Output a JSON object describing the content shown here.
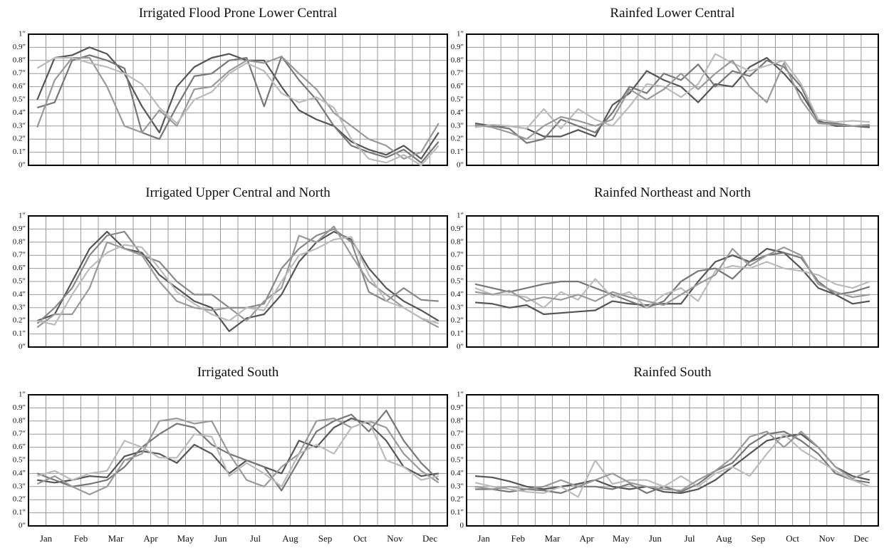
{
  "chart_data": [
    {
      "type": "line",
      "title": "Irrigated Flood Prone Lower Central",
      "ylim": [
        0,
        1
      ],
      "grid": true,
      "yticks": [
        {
          "value": 0,
          "label": "0\""
        },
        {
          "value": 0.1,
          "label": "0.1\""
        },
        {
          "value": 0.2,
          "label": "0.2\""
        },
        {
          "value": 0.3,
          "label": "0.3\""
        },
        {
          "value": 0.4,
          "label": "0.4\""
        },
        {
          "value": 0.5,
          "label": "0.5\""
        },
        {
          "value": 0.6,
          "label": "0.6\""
        },
        {
          "value": 0.7,
          "label": "0.7\""
        },
        {
          "value": 0.8,
          "label": "0.8\""
        },
        {
          "value": 0.9,
          "label": "0.9\""
        },
        {
          "value": 1,
          "label": "1\""
        }
      ],
      "series": [
        {
          "color": "#555555",
          "values": [
            0.5,
            0.82,
            0.84,
            0.9,
            0.85,
            0.7,
            0.45,
            0.25,
            0.6,
            0.75,
            0.82,
            0.85,
            0.8,
            0.8,
            0.6,
            0.42,
            0.35,
            0.3,
            0.18,
            0.12,
            0.08,
            0.15,
            0.05,
            0.25
          ]
        },
        {
          "color": "#777777",
          "values": [
            0.44,
            0.48,
            0.8,
            0.84,
            0.8,
            0.74,
            0.25,
            0.2,
            0.45,
            0.68,
            0.7,
            0.8,
            0.82,
            0.45,
            0.83,
            0.65,
            0.5,
            0.3,
            0.15,
            0.1,
            0.06,
            0.12,
            0.02,
            0.18
          ]
        },
        {
          "color": "#999999",
          "values": [
            0.29,
            0.65,
            0.82,
            0.82,
            0.6,
            0.3,
            0.25,
            0.42,
            0.3,
            0.58,
            0.6,
            0.72,
            0.8,
            0.78,
            0.83,
            0.7,
            0.58,
            0.4,
            0.3,
            0.2,
            0.15,
            0.05,
            0.1,
            0.32
          ]
        },
        {
          "color": "#bbbbbb",
          "values": [
            0.74,
            0.82,
            0.82,
            0.78,
            0.75,
            0.7,
            0.62,
            0.44,
            0.32,
            0.5,
            0.56,
            0.7,
            0.78,
            0.72,
            0.55,
            0.48,
            0.52,
            0.44,
            0.2,
            0.05,
            0.02,
            0.08,
            0,
            0.15
          ]
        }
      ]
    },
    {
      "type": "line",
      "title": "Rainfed Lower Central",
      "ylim": [
        0,
        1
      ],
      "grid": true,
      "yticks": [
        {
          "value": 0,
          "label": "0\""
        },
        {
          "value": 0.1,
          "label": "0.1\""
        },
        {
          "value": 0.2,
          "label": "0.2\""
        },
        {
          "value": 0.3,
          "label": "0.3\""
        },
        {
          "value": 0.4,
          "label": "0.4\""
        },
        {
          "value": 0.5,
          "label": "0.5\""
        },
        {
          "value": 0.6,
          "label": "0.6\""
        },
        {
          "value": 0.7,
          "label": "0.7\""
        },
        {
          "value": 0.8,
          "label": "0.8\""
        },
        {
          "value": 0.9,
          "label": "0.9\""
        },
        {
          "value": 1,
          "label": "1\""
        }
      ],
      "series": [
        {
          "color": "#555555",
          "values": [
            0.32,
            0.3,
            0.3,
            0.28,
            0.22,
            0.22,
            0.27,
            0.22,
            0.46,
            0.55,
            0.72,
            0.65,
            0.6,
            0.48,
            0.62,
            0.6,
            0.75,
            0.82,
            0.7,
            0.55,
            0.34,
            0.3,
            0.3,
            0.29
          ]
        },
        {
          "color": "#777777",
          "values": [
            0.3,
            0.3,
            0.28,
            0.17,
            0.2,
            0.35,
            0.3,
            0.25,
            0.4,
            0.6,
            0.55,
            0.7,
            0.65,
            0.77,
            0.6,
            0.72,
            0.68,
            0.8,
            0.75,
            0.6,
            0.33,
            0.32,
            0.3,
            0.3
          ]
        },
        {
          "color": "#bbbbbb",
          "values": [
            0.29,
            0.31,
            0.3,
            0.28,
            0.43,
            0.28,
            0.43,
            0.35,
            0.3,
            0.45,
            0.62,
            0.6,
            0.52,
            0.62,
            0.85,
            0.78,
            0.72,
            0.76,
            0.8,
            0.62,
            0.35,
            0.33,
            0.34,
            0.33
          ]
        },
        {
          "color": "#999999",
          "values": [
            0.31,
            0.29,
            0.25,
            0.2,
            0.3,
            0.37,
            0.34,
            0.3,
            0.35,
            0.58,
            0.5,
            0.58,
            0.7,
            0.58,
            0.7,
            0.8,
            0.6,
            0.48,
            0.78,
            0.5,
            0.32,
            0.31,
            0.3,
            0.31
          ]
        }
      ]
    },
    {
      "type": "line",
      "title": "Irrigated Upper Central and North",
      "ylim": [
        0,
        1
      ],
      "grid": true,
      "yticks": [
        {
          "value": 0,
          "label": "0\""
        },
        {
          "value": 0.1,
          "label": "0.1\""
        },
        {
          "value": 0.2,
          "label": "0.2\""
        },
        {
          "value": 0.3,
          "label": "0.3\""
        },
        {
          "value": 0.4,
          "label": "0.4\""
        },
        {
          "value": 0.5,
          "label": "0.5\""
        },
        {
          "value": 0.6,
          "label": "0.6\""
        },
        {
          "value": 0.7,
          "label": "0.7\""
        },
        {
          "value": 0.8,
          "label": "0.8\""
        },
        {
          "value": 0.9,
          "label": "0.9\""
        },
        {
          "value": 1,
          "label": "1\""
        }
      ],
      "series": [
        {
          "color": "#555555",
          "values": [
            0.2,
            0.25,
            0.5,
            0.75,
            0.88,
            0.75,
            0.72,
            0.55,
            0.45,
            0.35,
            0.3,
            0.12,
            0.22,
            0.25,
            0.4,
            0.65,
            0.8,
            0.88,
            0.82,
            0.6,
            0.45,
            0.35,
            0.28,
            0.2
          ]
        },
        {
          "color": "#888888",
          "values": [
            0.18,
            0.3,
            0.45,
            0.7,
            0.85,
            0.88,
            0.7,
            0.65,
            0.5,
            0.4,
            0.4,
            0.3,
            0.3,
            0.33,
            0.6,
            0.75,
            0.85,
            0.9,
            0.8,
            0.42,
            0.35,
            0.45,
            0.36,
            0.35
          ]
        },
        {
          "color": "#999999",
          "values": [
            0.15,
            0.25,
            0.25,
            0.45,
            0.8,
            0.75,
            0.7,
            0.5,
            0.35,
            0.3,
            0.28,
            0.3,
            0.2,
            0.35,
            0.45,
            0.85,
            0.8,
            0.92,
            0.7,
            0.5,
            0.4,
            0.3,
            0.22,
            0.15
          ]
        },
        {
          "color": "#bbbbbb",
          "values": [
            0.2,
            0.17,
            0.4,
            0.6,
            0.72,
            0.78,
            0.76,
            0.6,
            0.42,
            0.33,
            0.25,
            0.2,
            0.3,
            0.28,
            0.5,
            0.7,
            0.75,
            0.82,
            0.84,
            0.55,
            0.35,
            0.3,
            0.22,
            0.18
          ]
        }
      ]
    },
    {
      "type": "line",
      "title": "Rainfed Northeast and North",
      "ylim": [
        0,
        1
      ],
      "grid": true,
      "yticks": [
        {
          "value": 0,
          "label": "0\""
        },
        {
          "value": 0.1,
          "label": "0.1\""
        },
        {
          "value": 0.2,
          "label": "0.2\""
        },
        {
          "value": 0.3,
          "label": "0.3\""
        },
        {
          "value": 0.4,
          "label": "0.4\""
        },
        {
          "value": 0.5,
          "label": "0.5\""
        },
        {
          "value": 0.6,
          "label": "0.6\""
        },
        {
          "value": 0.7,
          "label": "0.7\""
        },
        {
          "value": 0.8,
          "label": "0.8\""
        },
        {
          "value": 0.9,
          "label": "0.9\""
        },
        {
          "value": 1,
          "label": "1\""
        }
      ],
      "series": [
        {
          "color": "#555555",
          "values": [
            0.34,
            0.33,
            0.3,
            0.32,
            0.25,
            0.26,
            0.27,
            0.28,
            0.35,
            0.33,
            0.32,
            0.33,
            0.33,
            0.5,
            0.65,
            0.7,
            0.65,
            0.75,
            0.72,
            0.6,
            0.45,
            0.4,
            0.33,
            0.35
          ]
        },
        {
          "color": "#777777",
          "values": [
            0.48,
            0.45,
            0.42,
            0.45,
            0.48,
            0.5,
            0.5,
            0.45,
            0.4,
            0.35,
            0.3,
            0.35,
            0.5,
            0.58,
            0.6,
            0.52,
            0.65,
            0.7,
            0.72,
            0.68,
            0.5,
            0.4,
            0.42,
            0.46
          ]
        },
        {
          "color": "#bbbbbb",
          "values": [
            0.45,
            0.4,
            0.4,
            0.38,
            0.3,
            0.42,
            0.36,
            0.52,
            0.38,
            0.42,
            0.3,
            0.4,
            0.45,
            0.35,
            0.58,
            0.62,
            0.6,
            0.65,
            0.6,
            0.58,
            0.55,
            0.48,
            0.45,
            0.5
          ]
        },
        {
          "color": "#999999",
          "values": [
            0.42,
            0.4,
            0.43,
            0.35,
            0.38,
            0.36,
            0.4,
            0.35,
            0.42,
            0.38,
            0.35,
            0.32,
            0.4,
            0.48,
            0.55,
            0.75,
            0.62,
            0.7,
            0.76,
            0.7,
            0.48,
            0.42,
            0.38,
            0.4
          ]
        }
      ]
    },
    {
      "type": "line",
      "title": "Irrigated South",
      "ylim": [
        0,
        1
      ],
      "grid": true,
      "categories": [
        "Jan",
        null,
        "Feb",
        null,
        "Mar",
        null,
        "Apr",
        null,
        "May",
        null,
        "Jun",
        null,
        "Jul",
        null,
        "Aug",
        null,
        "Sep",
        null,
        "Oct",
        null,
        "Nov",
        null,
        "Dec",
        null
      ],
      "yticks": [
        {
          "value": 0,
          "label": "0\""
        },
        {
          "value": 0.1,
          "label": "0.1\""
        },
        {
          "value": 0.2,
          "label": "0.2\""
        },
        {
          "value": 0.3,
          "label": "0.3\""
        },
        {
          "value": 0.4,
          "label": "0.4\""
        },
        {
          "value": 0.5,
          "label": "0.5\""
        },
        {
          "value": 0.6,
          "label": "0.6\""
        },
        {
          "value": 0.7,
          "label": "0.7\""
        },
        {
          "value": 0.8,
          "label": "0.8\""
        },
        {
          "value": 0.9,
          "label": "0.9\""
        },
        {
          "value": 1,
          "label": "1\""
        }
      ],
      "series": [
        {
          "color": "#555555",
          "values": [
            0.35,
            0.33,
            0.35,
            0.38,
            0.37,
            0.53,
            0.57,
            0.55,
            0.48,
            0.62,
            0.55,
            0.4,
            0.5,
            0.45,
            0.4,
            0.65,
            0.6,
            0.75,
            0.82,
            0.78,
            0.65,
            0.45,
            0.38,
            0.4
          ]
        },
        {
          "color": "#777777",
          "values": [
            0.4,
            0.35,
            0.3,
            0.32,
            0.35,
            0.45,
            0.6,
            0.7,
            0.78,
            0.75,
            0.62,
            0.55,
            0.5,
            0.45,
            0.27,
            0.5,
            0.72,
            0.8,
            0.85,
            0.72,
            0.88,
            0.65,
            0.48,
            0.35
          ]
        },
        {
          "color": "#999999",
          "values": [
            0.32,
            0.38,
            0.3,
            0.24,
            0.3,
            0.5,
            0.55,
            0.8,
            0.82,
            0.78,
            0.8,
            0.55,
            0.35,
            0.3,
            0.45,
            0.55,
            0.8,
            0.82,
            0.75,
            0.8,
            0.75,
            0.55,
            0.42,
            0.33
          ]
        },
        {
          "color": "#bbbbbb",
          "values": [
            0.38,
            0.42,
            0.35,
            0.4,
            0.42,
            0.65,
            0.6,
            0.52,
            0.52,
            0.7,
            0.68,
            0.38,
            0.48,
            0.4,
            0.3,
            0.55,
            0.62,
            0.55,
            0.75,
            0.8,
            0.5,
            0.45,
            0.35,
            0.38
          ]
        }
      ]
    },
    {
      "type": "line",
      "title": "Rainfed South",
      "ylim": [
        0,
        1
      ],
      "grid": true,
      "categories": [
        "Jan",
        null,
        "Feb",
        null,
        "Mar",
        null,
        "Apr",
        null,
        "May",
        null,
        "Jun",
        null,
        "Jul",
        null,
        "Aug",
        null,
        "Sep",
        null,
        "Oct",
        null,
        "Nov",
        null,
        "Dec",
        null
      ],
      "yticks": [
        0,
        {
          "value": 0.1,
          "label": "0.1\""
        },
        {
          "value": 0.2,
          "label": "0.2\""
        },
        {
          "value": 0.3,
          "label": "0.3\""
        },
        {
          "value": 0.4,
          "label": "0.4\""
        },
        {
          "value": 0.5,
          "label": "0.5\""
        },
        {
          "value": 0.6,
          "label": "0.6\""
        },
        {
          "value": 0.7,
          "label": "0.7\""
        },
        {
          "value": 0.8,
          "label": "0.8\""
        },
        {
          "value": 0.9,
          "label": "0.9\""
        },
        {
          "value": 1,
          "label": "1\""
        }
      ],
      "series": [
        {
          "color": "#555555",
          "values": [
            0.38,
            0.37,
            0.34,
            0.3,
            0.28,
            0.3,
            0.32,
            0.35,
            0.3,
            0.28,
            0.3,
            0.26,
            0.25,
            0.28,
            0.35,
            0.45,
            0.55,
            0.65,
            0.68,
            0.7,
            0.6,
            0.45,
            0.38,
            0.35
          ]
        },
        {
          "color": "#777777",
          "values": [
            0.28,
            0.28,
            0.26,
            0.28,
            0.27,
            0.25,
            0.3,
            0.3,
            0.28,
            0.32,
            0.25,
            0.3,
            0.26,
            0.32,
            0.42,
            0.48,
            0.62,
            0.7,
            0.72,
            0.65,
            0.55,
            0.4,
            0.35,
            0.33
          ]
        },
        {
          "color": "#bbbbbb",
          "values": [
            0.33,
            0.3,
            0.28,
            0.26,
            0.25,
            0.3,
            0.22,
            0.5,
            0.32,
            0.35,
            0.35,
            0.3,
            0.38,
            0.3,
            0.4,
            0.45,
            0.38,
            0.55,
            0.7,
            0.58,
            0.5,
            0.42,
            0.35,
            0.3
          ]
        },
        {
          "color": "#999999",
          "values": [
            0.3,
            0.28,
            0.3,
            0.28,
            0.3,
            0.35,
            0.3,
            0.35,
            0.4,
            0.33,
            0.3,
            0.28,
            0.27,
            0.35,
            0.42,
            0.52,
            0.68,
            0.72,
            0.6,
            0.72,
            0.6,
            0.45,
            0.36,
            0.42
          ]
        }
      ]
    }
  ]
}
